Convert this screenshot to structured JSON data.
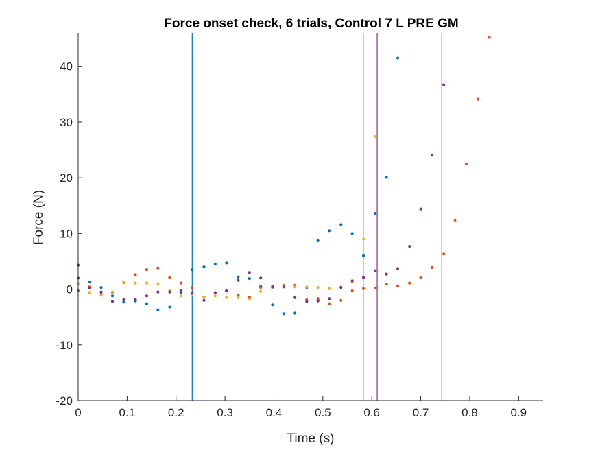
{
  "chart_data": {
    "type": "scatter",
    "title": "Force onset check, 6 trials, Control 7 L PRE GM",
    "xlabel": "Time (s)",
    "ylabel": "Force (N)",
    "xlim": [
      0,
      0.95
    ],
    "ylim": [
      -20,
      46
    ],
    "xticks": [
      0,
      0.1,
      0.2,
      0.3,
      0.4,
      0.5,
      0.6,
      0.7,
      0.8,
      0.9
    ],
    "xtick_labels": [
      "0",
      "0.1",
      "0.2",
      "0.3",
      "0.4",
      "0.5",
      "0.6",
      "0.7",
      "0.8",
      "0.9"
    ],
    "yticks": [
      -20,
      -10,
      0,
      10,
      20,
      30,
      40
    ],
    "ytick_labels": [
      "-20",
      "-10",
      "0",
      "10",
      "20",
      "30",
      "40"
    ],
    "grid": false,
    "series": [
      {
        "color": "#0072BD",
        "points": [
          [
            0,
            2
          ],
          [
            0.023,
            1.3
          ],
          [
            0.047,
            0.3
          ],
          [
            0.07,
            -1.2
          ],
          [
            0.093,
            -2.3
          ],
          [
            0.117,
            -2.1
          ],
          [
            0.14,
            -2.6
          ],
          [
            0.163,
            -3.7
          ],
          [
            0.187,
            -3.2
          ],
          [
            0.21,
            -0.6
          ],
          [
            0.233,
            3.5
          ],
          [
            0.257,
            4
          ],
          [
            0.28,
            4.5
          ],
          [
            0.303,
            4.7
          ],
          [
            0.327,
            2.2
          ],
          [
            0.35,
            1.9
          ],
          [
            0.373,
            0.5
          ],
          [
            0.397,
            -2.8
          ],
          [
            0.42,
            -4.4
          ],
          [
            0.443,
            -4.3
          ],
          [
            0.467,
            0.3
          ],
          [
            0.49,
            8.7
          ],
          [
            0.513,
            10.5
          ],
          [
            0.537,
            11.6
          ],
          [
            0.56,
            10
          ],
          [
            0.583,
            6
          ],
          [
            0.607,
            13.6
          ],
          [
            0.63,
            20.1
          ],
          [
            0.653,
            41.5
          ]
        ]
      },
      {
        "color": "#D95319",
        "points": [
          [
            0,
            -0.3
          ],
          [
            0.023,
            0.4
          ],
          [
            0.047,
            -0.9
          ],
          [
            0.07,
            -0.6
          ],
          [
            0.093,
            1.2
          ],
          [
            0.117,
            2.6
          ],
          [
            0.14,
            3.5
          ],
          [
            0.163,
            3.8
          ],
          [
            0.187,
            2.1
          ],
          [
            0.21,
            1.1
          ],
          [
            0.233,
            0.3
          ],
          [
            0.257,
            -1.4
          ],
          [
            0.28,
            -0.7
          ],
          [
            0.303,
            -0.3
          ],
          [
            0.327,
            -1.1
          ],
          [
            0.35,
            -1.4
          ],
          [
            0.373,
            0.3
          ],
          [
            0.397,
            0.5
          ],
          [
            0.42,
            0.7
          ],
          [
            0.443,
            0.7
          ],
          [
            0.467,
            -1.9
          ],
          [
            0.49,
            -1.7
          ],
          [
            0.513,
            -2.6
          ],
          [
            0.537,
            -2
          ],
          [
            0.56,
            -0.3
          ],
          [
            0.583,
            0.1
          ],
          [
            0.607,
            0.2
          ],
          [
            0.63,
            0.9
          ],
          [
            0.653,
            0.6
          ],
          [
            0.677,
            1.1
          ],
          [
            0.7,
            2.1
          ],
          [
            0.723,
            3.9
          ],
          [
            0.747,
            6.3
          ],
          [
            0.77,
            12.4
          ],
          [
            0.793,
            22.5
          ],
          [
            0.817,
            34.1
          ],
          [
            0.84,
            45.2
          ]
        ]
      },
      {
        "color": "#EDB120",
        "points": [
          [
            0,
            1
          ],
          [
            0.023,
            -0.6
          ],
          [
            0.047,
            -1.1
          ],
          [
            0.07,
            -0.5
          ],
          [
            0.093,
            1.3
          ],
          [
            0.117,
            1.1
          ],
          [
            0.14,
            1.1
          ],
          [
            0.163,
            1
          ],
          [
            0.187,
            -0.3
          ],
          [
            0.21,
            -1.2
          ],
          [
            0.233,
            -0.9
          ],
          [
            0.257,
            -1.5
          ],
          [
            0.28,
            -1.2
          ],
          [
            0.303,
            -1.5
          ],
          [
            0.327,
            -1.5
          ],
          [
            0.35,
            -1.8
          ],
          [
            0.373,
            -0.4
          ],
          [
            0.397,
            0.2
          ],
          [
            0.42,
            0.6
          ],
          [
            0.443,
            0.4
          ],
          [
            0.467,
            0.4
          ],
          [
            0.49,
            0.3
          ],
          [
            0.513,
            0.1
          ],
          [
            0.537,
            0.4
          ],
          [
            0.56,
            1.3
          ],
          [
            0.583,
            9
          ],
          [
            0.607,
            27.4
          ]
        ]
      },
      {
        "color": "#7E2F8E",
        "points": [
          [
            0,
            4.3
          ],
          [
            0.023,
            0.2
          ],
          [
            0.047,
            -0.5
          ],
          [
            0.07,
            -2.2
          ],
          [
            0.093,
            -1.9
          ],
          [
            0.117,
            -1.9
          ],
          [
            0.14,
            -1.2
          ],
          [
            0.163,
            -0.5
          ],
          [
            0.187,
            -0.5
          ],
          [
            0.21,
            -0.3
          ],
          [
            0.233,
            -0.7
          ],
          [
            0.257,
            -2
          ],
          [
            0.28,
            -0.6
          ],
          [
            0.303,
            -0.3
          ],
          [
            0.327,
            1.6
          ],
          [
            0.35,
            3
          ],
          [
            0.373,
            2
          ],
          [
            0.397,
            0.4
          ],
          [
            0.42,
            0.4
          ],
          [
            0.443,
            -1.5
          ],
          [
            0.467,
            -2.2
          ],
          [
            0.49,
            -2.1
          ],
          [
            0.513,
            -1.7
          ],
          [
            0.537,
            0.3
          ],
          [
            0.56,
            1.5
          ],
          [
            0.583,
            2.1
          ],
          [
            0.607,
            3.3
          ],
          [
            0.63,
            2.7
          ],
          [
            0.653,
            3.7
          ],
          [
            0.677,
            7.7
          ],
          [
            0.7,
            14.4
          ],
          [
            0.723,
            24.1
          ],
          [
            0.747,
            36.7
          ]
        ]
      }
    ],
    "vlines": [
      {
        "x": 0.233,
        "color": "#0072BD"
      },
      {
        "x": 0.583,
        "color": "#EDB120"
      },
      {
        "x": 0.611,
        "color": "#7E2F8E"
      },
      {
        "x": 0.743,
        "color": "#D95319"
      }
    ]
  }
}
